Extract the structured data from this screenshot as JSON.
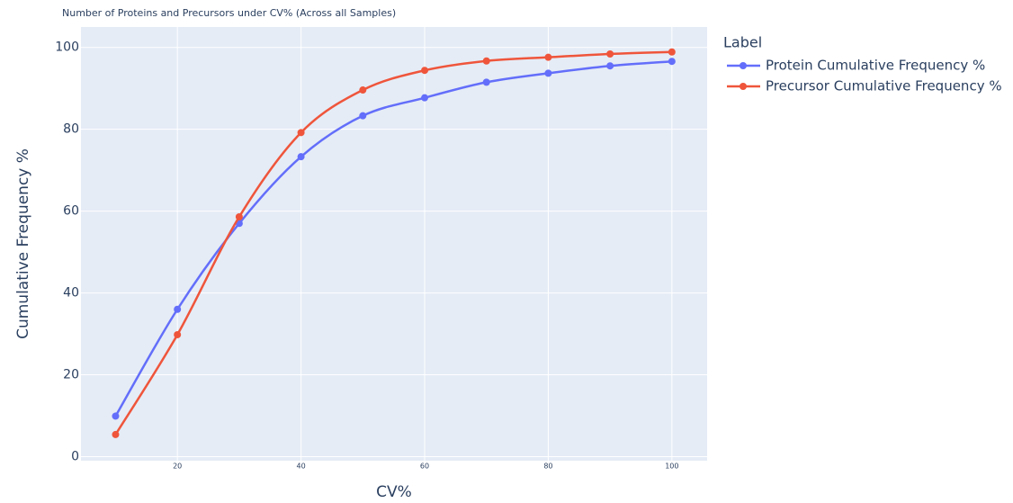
{
  "chart_data": {
    "type": "line",
    "title": "Number of Proteins and Precursors under CV% (Across all Samples)",
    "x_label": "CV%",
    "y_label": "Cumulative Frequency %",
    "legend_title": "Label",
    "legend_position": "right",
    "x": [
      10,
      20,
      30,
      40,
      50,
      60,
      70,
      80,
      90,
      100
    ],
    "series": [
      {
        "name": "Protein Cumulative Frequency %",
        "color": "#636efa",
        "values": [
          9.9,
          36,
          57,
          73.3,
          83.3,
          87.7,
          91.5,
          93.7,
          95.5,
          96.6
        ]
      },
      {
        "name": "Precursor Cumulative Frequency %",
        "color": "#ef553b",
        "values": [
          5.4,
          29.8,
          58.6,
          79.2,
          89.6,
          94.4,
          96.7,
          97.6,
          98.4,
          98.9
        ]
      }
    ],
    "xlim": [
      4.4,
      105.7
    ],
    "xticks": [
      20,
      40,
      60,
      80,
      100
    ],
    "ylim": [
      -1,
      105
    ],
    "yticks": [
      0,
      20,
      40,
      60,
      80,
      100
    ],
    "grid": true,
    "smooth": true
  }
}
